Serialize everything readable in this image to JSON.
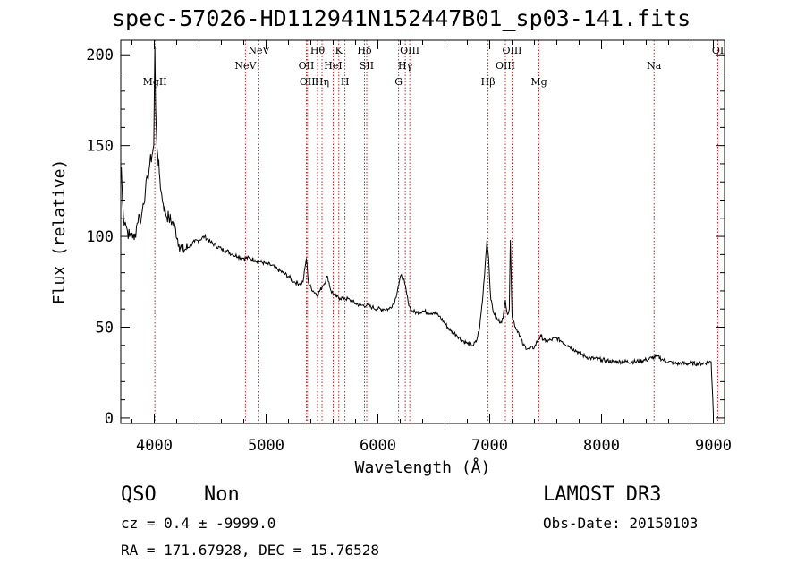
{
  "title": "spec-57026-HD112941N152447B01_sp03-141.fits",
  "info": {
    "class": "QSO",
    "subclass": "Non",
    "survey": "LAMOST DR3",
    "cz": "cz = 0.4 ± -9999.0",
    "obs_date": "Obs-Date: 20150103",
    "coords": "RA = 171.67928, DEC =  15.76528"
  },
  "chart_data": {
    "type": "line",
    "title": "spec-57026-HD112941N152447B01_sp03-141.fits",
    "xlabel": "Wavelength (Å)",
    "ylabel": "Flux (relative)",
    "xlim": [
      3700,
      9100
    ],
    "ylim": [
      -3,
      208
    ],
    "xticks": [
      4000,
      5000,
      6000,
      7000,
      8000,
      9000
    ],
    "yticks": [
      0,
      50,
      100,
      150,
      200
    ],
    "grid": false,
    "line_color": "#000000",
    "marker_color": "#cc2222",
    "series": [
      {
        "x": [
          3705,
          3715,
          3725,
          3740,
          3760,
          3780,
          3800,
          3820,
          3840,
          3860,
          3880,
          3900,
          3920,
          3940,
          3960,
          3980,
          3995,
          4005,
          4012,
          4020,
          4030,
          4045,
          4060,
          4080,
          4100,
          4130,
          4160,
          4190,
          4220,
          4250,
          4280,
          4320,
          4360,
          4400,
          4450,
          4500,
          4550,
          4600,
          4650,
          4700,
          4750,
          4800,
          4850,
          4900,
          4950,
          5000,
          5050,
          5100,
          5150,
          5200,
          5250,
          5300,
          5330,
          5360,
          5380,
          5420,
          5460,
          5500,
          5550,
          5580,
          5620,
          5660,
          5700,
          5750,
          5800,
          5850,
          5900,
          5950,
          6000,
          6050,
          6100,
          6150,
          6180,
          6210,
          6240,
          6270,
          6300,
          6350,
          6400,
          6450,
          6500,
          6550,
          6600,
          6650,
          6700,
          6750,
          6800,
          6850,
          6880,
          6910,
          6940,
          6960,
          6975,
          6990,
          7010,
          7040,
          7070,
          7100,
          7120,
          7140,
          7160,
          7175,
          7185,
          7200,
          7230,
          7260,
          7300,
          7350,
          7400,
          7430,
          7460,
          7500,
          7550,
          7600,
          7650,
          7700,
          7750,
          7800,
          7850,
          7900,
          8000,
          8100,
          8200,
          8300,
          8400,
          8450,
          8500,
          8550,
          8600,
          8650,
          8700,
          8800,
          8900,
          8980,
          8995,
          9000
        ],
        "y": [
          138,
          120,
          110,
          108,
          103,
          100,
          102,
          98,
          105,
          112,
          108,
          118,
          125,
          132,
          140,
          145,
          150,
          205,
          170,
          155,
          145,
          135,
          125,
          118,
          113,
          110,
          108,
          104,
          96,
          92,
          93,
          95,
          97,
          98,
          100,
          97,
          95,
          93,
          92,
          90,
          89,
          88,
          88,
          87,
          86,
          85,
          84,
          82,
          80,
          78,
          75,
          74,
          75,
          88,
          74,
          70,
          68,
          72,
          78,
          70,
          67,
          66,
          66,
          65,
          63,
          62,
          62,
          61,
          60,
          60,
          60,
          64,
          72,
          79,
          74,
          64,
          59,
          58,
          59,
          58,
          58,
          56,
          52,
          48,
          46,
          43,
          41,
          40,
          42,
          50,
          68,
          85,
          98,
          88,
          65,
          57,
          54,
          53,
          55,
          65,
          57,
          60,
          98,
          56,
          50,
          47,
          40,
          38,
          39,
          43,
          45,
          42,
          43,
          44,
          42,
          40,
          38,
          36,
          34,
          33,
          32,
          31,
          31,
          31,
          32,
          33,
          34,
          32,
          31,
          30,
          30,
          30,
          30,
          31,
          10,
          2
        ]
      }
    ],
    "lines": [
      {
        "name": "MgII",
        "x": 4005,
        "row": 3
      },
      {
        "name": "NeV",
        "x": 4815,
        "row": 2
      },
      {
        "name": "NeV",
        "x": 4935,
        "row": 1
      },
      {
        "name": "OII",
        "x": 5360,
        "row": 2
      },
      {
        "name": "OII",
        "x": 5370,
        "row": 3
      },
      {
        "name": "Hθ",
        "x": 5460,
        "row": 1
      },
      {
        "name": "Hη",
        "x": 5500,
        "row": 3
      },
      {
        "name": "HeI",
        "x": 5600,
        "row": 2
      },
      {
        "name": "K",
        "x": 5650,
        "row": 1
      },
      {
        "name": "H",
        "x": 5705,
        "row": 3
      },
      {
        "name": "Hδ",
        "x": 5880,
        "row": 1
      },
      {
        "name": "SII",
        "x": 5900,
        "row": 2
      },
      {
        "name": "G",
        "x": 6185,
        "row": 3
      },
      {
        "name": "Hγ",
        "x": 6245,
        "row": 2
      },
      {
        "name": "OIII",
        "x": 6285,
        "row": 1
      },
      {
        "name": "Hβ",
        "x": 6985,
        "row": 3
      },
      {
        "name": "OIII",
        "x": 7140,
        "row": 2
      },
      {
        "name": "OIII",
        "x": 7200,
        "row": 1
      },
      {
        "name": "Mg",
        "x": 7440,
        "row": 3
      },
      {
        "name": "Na",
        "x": 8470,
        "row": 2
      },
      {
        "name": "OI",
        "x": 9040,
        "row": 1
      }
    ]
  }
}
